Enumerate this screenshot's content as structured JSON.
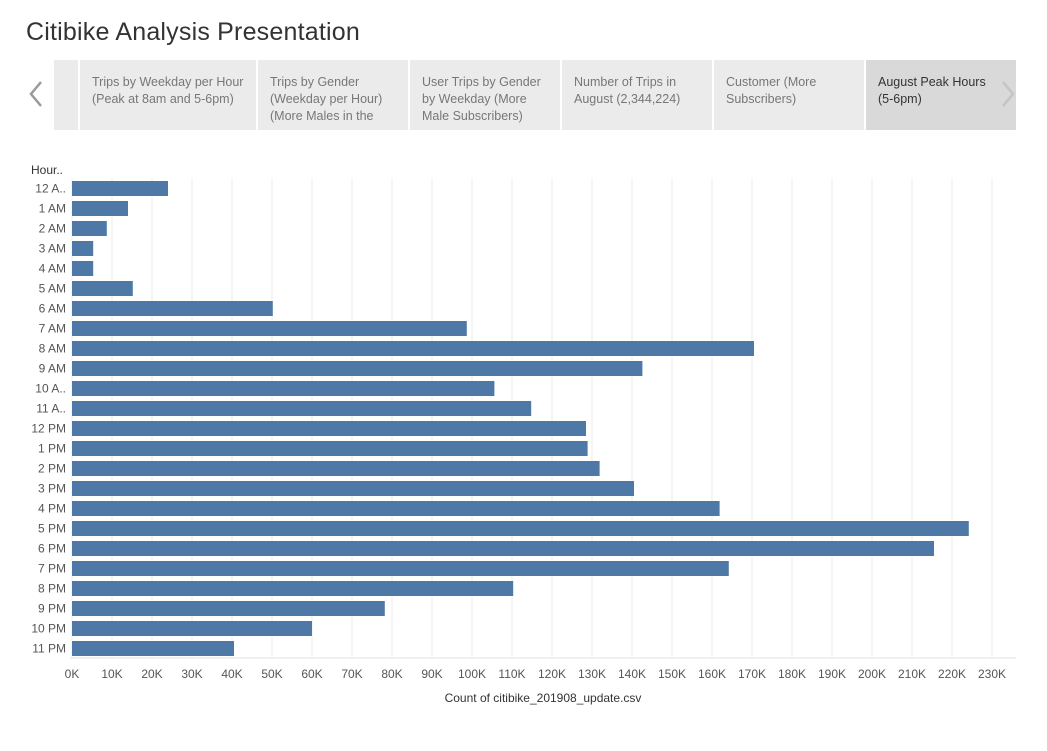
{
  "page": {
    "title": "Citibike Analysis Presentation"
  },
  "story": {
    "prev_icon": "chevron-left-icon",
    "next_icon": "chevron-right-icon",
    "points": [
      {
        "label": "",
        "active": false,
        "blank": true
      },
      {
        "label": "Trips by Weekday per Hour (Peak at 8am and 5-6pm)",
        "active": false
      },
      {
        "label": "Trips by Gender (Weekday per Hour) (More Males in the",
        "active": false
      },
      {
        "label": "User Trips by Gender by Weekday (More Male Subscribers)",
        "active": false
      },
      {
        "label": "Number of Trips in August (2,344,224)",
        "active": false
      },
      {
        "label": "Customer  (More Subscribers)",
        "active": false
      },
      {
        "label": "August Peak Hours (5-6pm)",
        "active": true
      }
    ]
  },
  "colors": {
    "bar": "#4e79a7",
    "grid": "#ececec",
    "active_tab": "#d9d9d9",
    "tab": "#ebebeb"
  },
  "chart_data": {
    "type": "bar",
    "orientation": "horizontal",
    "row_header": "Hour..",
    "categories": [
      "12 A..",
      "1 AM",
      "2 AM",
      "3 AM",
      "4 AM",
      "5 AM",
      "6 AM",
      "7 AM",
      "8 AM",
      "9 AM",
      "10 A..",
      "11 A..",
      "12 PM",
      "1 PM",
      "2 PM",
      "3 PM",
      "4 PM",
      "5 PM",
      "6 PM",
      "7 PM",
      "8 PM",
      "9 PM",
      "10 PM",
      "11 PM"
    ],
    "values": [
      24000,
      14000,
      8700,
      5300,
      5300,
      15200,
      50200,
      98700,
      170500,
      142600,
      105600,
      114800,
      128500,
      128900,
      131900,
      140500,
      161900,
      224200,
      215500,
      164200,
      110300,
      78200,
      60000,
      40500
    ],
    "xlabel": "Count of citibike_201908_update.csv",
    "ylabel": "",
    "xlim": [
      0,
      230000
    ],
    "xticks": [
      "0K",
      "10K",
      "20K",
      "30K",
      "40K",
      "50K",
      "60K",
      "70K",
      "80K",
      "90K",
      "100K",
      "110K",
      "120K",
      "130K",
      "140K",
      "150K",
      "160K",
      "170K",
      "180K",
      "190K",
      "200K",
      "210K",
      "220K",
      "230K"
    ],
    "grid": true,
    "legend": "none"
  }
}
